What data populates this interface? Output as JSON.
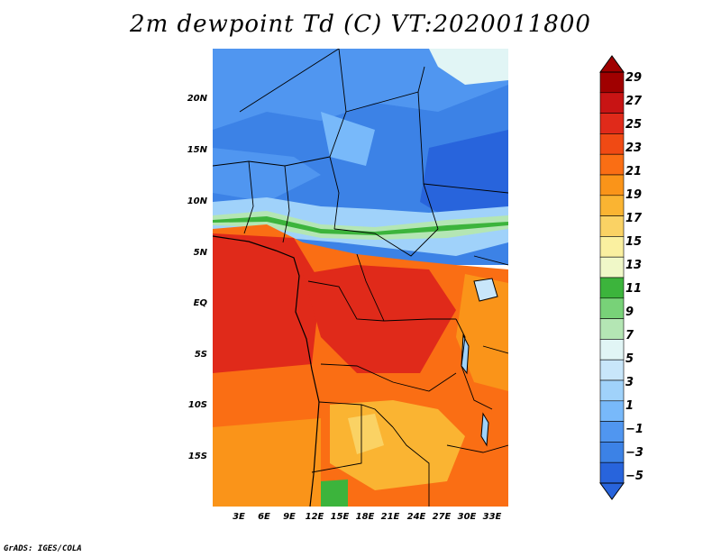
{
  "title": "2m dewpoint Td (C) VT:2020011800",
  "map": {
    "region": "Central Africa",
    "lat_labels": [
      "20N",
      "15N",
      "10N",
      "5N",
      "EQ",
      "5S",
      "10S",
      "15S"
    ],
    "lon_labels": [
      "3E",
      "6E",
      "9E",
      "12E",
      "15E",
      "18E",
      "21E",
      "24E",
      "27E",
      "30E",
      "33E"
    ]
  },
  "colorbar": {
    "labels": [
      "29",
      "27",
      "25",
      "23",
      "21",
      "19",
      "17",
      "15",
      "13",
      "11",
      "9",
      "7",
      "5",
      "3",
      "1",
      "−1",
      "−3",
      "−5"
    ],
    "colors": [
      "#a00000",
      "#c81414",
      "#e02a1a",
      "#f04a14",
      "#fa6e14",
      "#fa9419",
      "#fab432",
      "#fad264",
      "#faf0a0",
      "#f0f8c8",
      "#3cb43c",
      "#78d278",
      "#b4e6b4",
      "#e1f5f5",
      "#c8e6fa",
      "#a0d2fa",
      "#78b9fa",
      "#5096f0",
      "#3c82e6",
      "#2864dc"
    ],
    "units": "C"
  },
  "credit": "GrADS: IGES/COLA"
}
